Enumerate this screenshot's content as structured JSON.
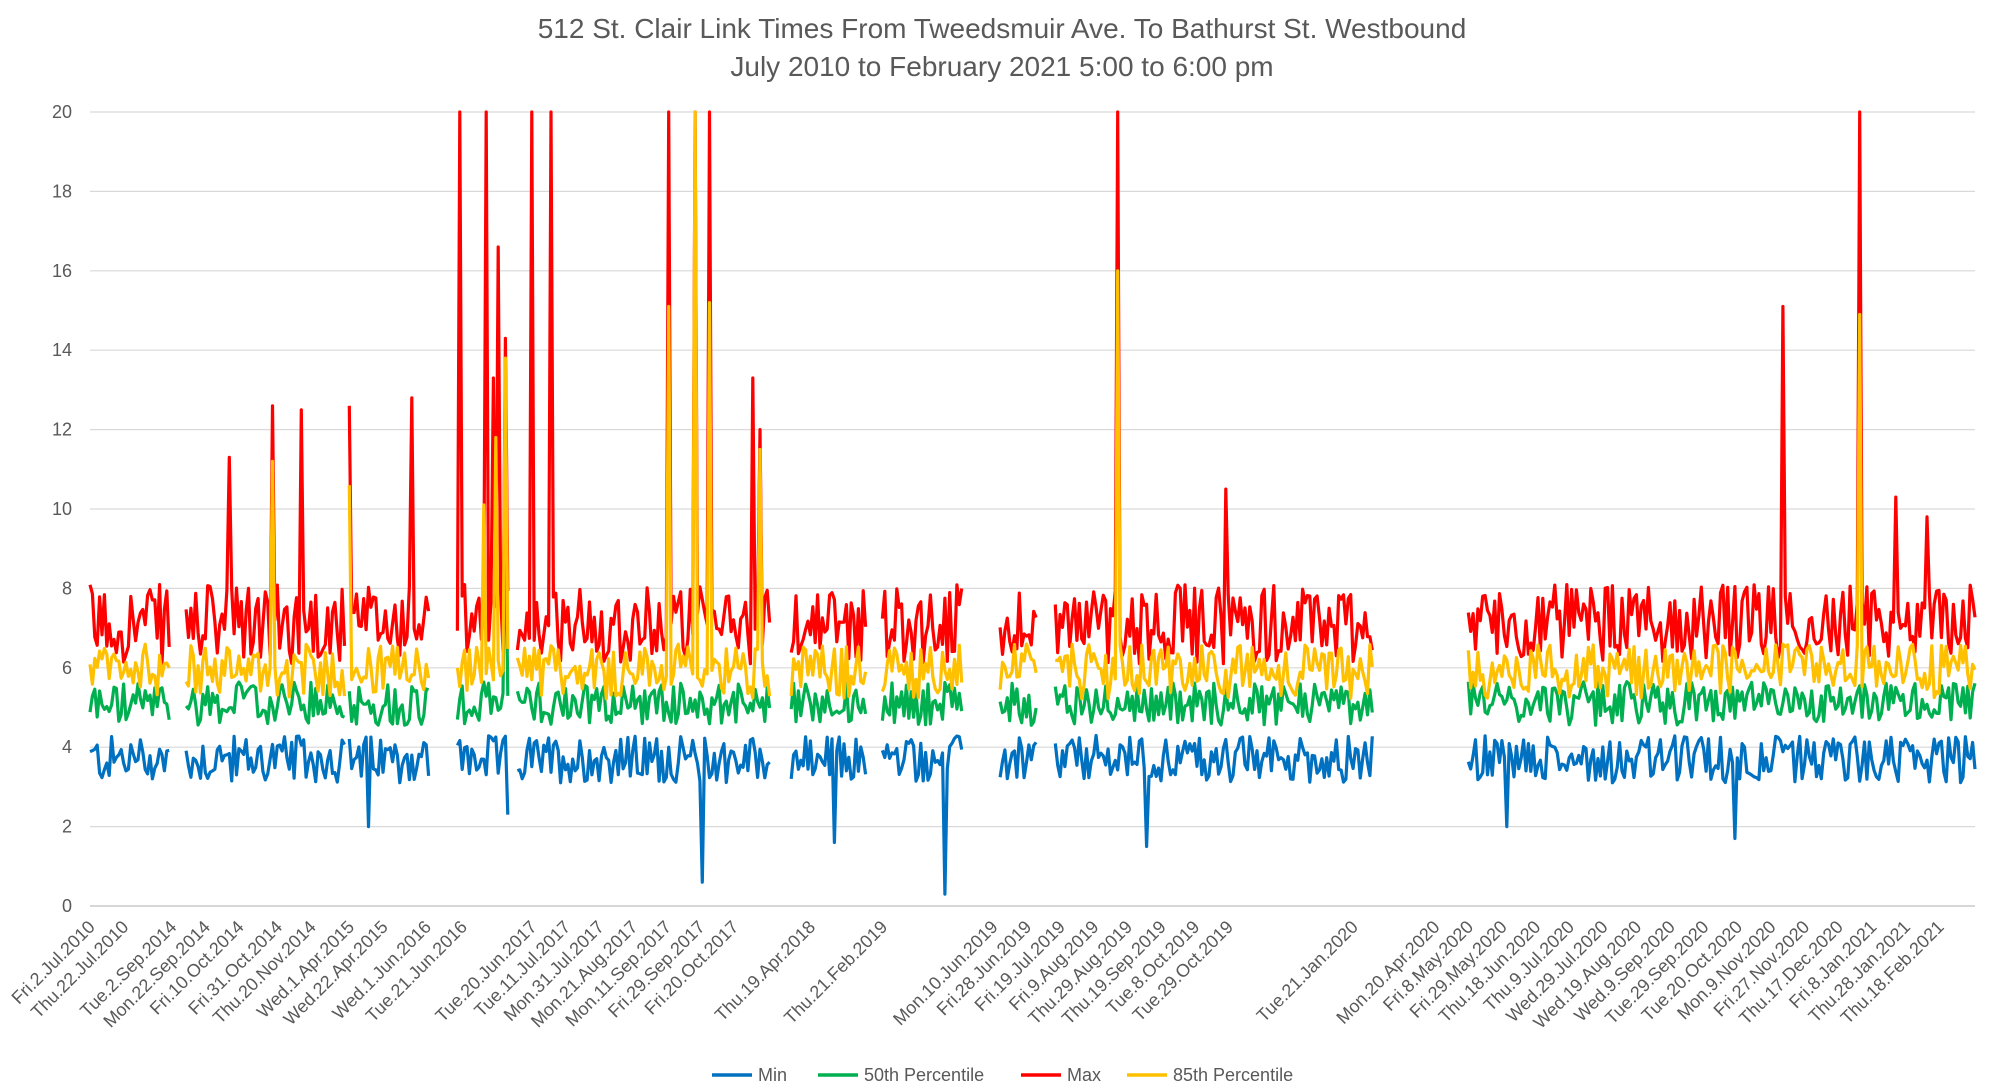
{
  "chart_data": {
    "type": "line",
    "title": "512 St. Clair Link Times From Tweedsmuir Ave. To Bathurst St. Westbound",
    "subtitle": "July 2010 to February 2021 5:00 to 6:00 pm",
    "xlabel": "",
    "ylabel": "",
    "ylim": [
      0,
      20
    ],
    "yticks": [
      0,
      2,
      4,
      6,
      8,
      10,
      12,
      14,
      16,
      18,
      20
    ],
    "grid": true,
    "legend_position": "bottom",
    "x_tick_labels": [
      "Fri.2.Jul.2010",
      "Thu.22.Jul.2010",
      "Tue.2.Sep.2014",
      "Mon.22.Sep.2014",
      "Fri.10.Oct.2014",
      "Fri.31.Oct.2014",
      "Thu.20.Nov.2014",
      "Wed.1.Apr.2015",
      "Wed.22.Apr.2015",
      "Wed.1.Jun.2016",
      "Tue.21.Jun.2016",
      "Tue.20.Jun.2017",
      "Tue.11.Jul.2017",
      "Mon.31.Jul.2017",
      "Mon.21.Aug.2017",
      "Mon.11.Sep.2017",
      "Fri.29.Sep.2017",
      "Fri.20.Oct.2017",
      "Thu.19.Apr.2018",
      "Thu.21.Feb.2019",
      "Mon.10.Jun.2019",
      "Fri.28.Jun.2019",
      "Fri.19.Jul.2019",
      "Fri.9.Aug.2019",
      "Thu.29.Aug.2019",
      "Thu.19.Sep.2019",
      "Tue.8.Oct.2019",
      "Tue.29.Oct.2019",
      "Tue.21.Jan.2020",
      "Mon.20.Apr.2020",
      "Fri.8.May.2020",
      "Fri.29.May.2020",
      "Thu.18.Jun.2020",
      "Thu.9.Jul.2020",
      "Wed.29.Jul.2020",
      "Wed.19.Aug.2020",
      "Wed.9.Sep.2020",
      "Tue.29.Sep.2020",
      "Tue.20.Oct.2020",
      "Mon.9.Nov.2020",
      "Fri.27.Nov.2020",
      "Thu.17.Dec.2020",
      "Fri.8.Jan.2021",
      "Thu.28.Jan.2021",
      "Thu.18.Feb.2021"
    ],
    "x_tick_index": [
      0,
      14,
      34,
      48,
      62,
      78,
      92,
      108,
      122,
      140,
      155,
      184,
      198,
      212,
      226,
      240,
      254,
      268,
      300,
      330,
      376,
      390,
      404,
      418,
      432,
      446,
      460,
      474,
      526,
      560,
      574,
      588,
      602,
      616,
      630,
      644,
      658,
      672,
      686,
      700,
      714,
      728,
      742,
      756,
      770
    ],
    "n_points": 786,
    "segments": [
      [
        0,
        33
      ],
      [
        40,
        106
      ],
      [
        108,
        141
      ],
      [
        153,
        174
      ],
      [
        178,
        283
      ],
      [
        292,
        323
      ],
      [
        330,
        363
      ],
      [
        379,
        394
      ],
      [
        402,
        534
      ],
      [
        574,
        786
      ]
    ],
    "spikes": [
      {
        "series": "Max",
        "at": 58,
        "value": 11.3
      },
      {
        "series": "Max",
        "at": 76,
        "value": 12.6
      },
      {
        "series": "85th Percentile",
        "at": 76,
        "value": 11.2
      },
      {
        "series": "Max",
        "at": 88,
        "value": 12.5
      },
      {
        "series": "Max",
        "at": 108,
        "value": 12.6
      },
      {
        "series": "85th Percentile",
        "at": 108,
        "value": 10.6
      },
      {
        "series": "Max",
        "at": 134,
        "value": 12.8
      },
      {
        "series": "Max",
        "at": 154,
        "value": 20
      },
      {
        "series": "Max",
        "at": 165,
        "value": 20
      },
      {
        "series": "85th Percentile",
        "at": 164,
        "value": 10.1
      },
      {
        "series": "Max",
        "at": 168,
        "value": 13.3
      },
      {
        "series": "Max",
        "at": 170,
        "value": 16.6
      },
      {
        "series": "85th Percentile",
        "at": 169,
        "value": 11.8
      },
      {
        "series": "Max",
        "at": 173,
        "value": 14.3
      },
      {
        "series": "85th Percentile",
        "at": 173,
        "value": 13.8
      },
      {
        "series": "50th Percentile",
        "at": 173,
        "value": 10.3
      },
      {
        "series": "Max",
        "at": 184,
        "value": 20
      },
      {
        "series": "Max",
        "at": 192,
        "value": 20
      },
      {
        "series": "Max",
        "at": 241,
        "value": 20
      },
      {
        "series": "85th Percentile",
        "at": 241,
        "value": 15.1
      },
      {
        "series": "Max",
        "at": 252,
        "value": 20
      },
      {
        "series": "85th Percentile",
        "at": 252,
        "value": 20
      },
      {
        "series": "Max",
        "at": 258,
        "value": 20
      },
      {
        "series": "85th Percentile",
        "at": 258,
        "value": 15.2
      },
      {
        "series": "Max",
        "at": 276,
        "value": 13.3
      },
      {
        "series": "Max",
        "at": 279,
        "value": 12.0
      },
      {
        "series": "85th Percentile",
        "at": 279,
        "value": 11.5
      },
      {
        "series": "Max",
        "at": 428,
        "value": 20
      },
      {
        "series": "85th Percentile",
        "at": 428,
        "value": 16.0
      },
      {
        "series": "Max",
        "at": 473,
        "value": 10.5
      },
      {
        "series": "Max",
        "at": 705,
        "value": 15.1
      },
      {
        "series": "Max",
        "at": 737,
        "value": 20
      },
      {
        "series": "85th Percentile",
        "at": 737,
        "value": 14.9
      },
      {
        "series": "Max",
        "at": 752,
        "value": 10.3
      },
      {
        "series": "Max",
        "at": 765,
        "value": 9.8
      },
      {
        "series": "Min",
        "at": 255,
        "value": 0.6
      },
      {
        "series": "Min",
        "at": 356,
        "value": 0.3
      },
      {
        "series": "Min",
        "at": 174,
        "value": 2.3
      },
      {
        "series": "Min",
        "at": 116,
        "value": 2.0
      },
      {
        "series": "Min",
        "at": 310,
        "value": 1.6
      },
      {
        "series": "Min",
        "at": 440,
        "value": 1.5
      },
      {
        "series": "Min",
        "at": 685,
        "value": 1.7
      },
      {
        "series": "Min",
        "at": 590,
        "value": 2.0
      }
    ],
    "series": [
      {
        "name": "Min",
        "color": "#0070C0",
        "typical": 3.7,
        "jitter": 0.6
      },
      {
        "name": "50th Percentile",
        "color": "#00B050",
        "typical": 5.1,
        "jitter": 0.5
      },
      {
        "name": "Max",
        "color": "#FF0000",
        "typical": 6.8,
        "jitter": 1.1
      },
      {
        "name": "85th Percentile",
        "color": "#FFC000",
        "typical": 5.9,
        "jitter": 0.7
      }
    ]
  }
}
